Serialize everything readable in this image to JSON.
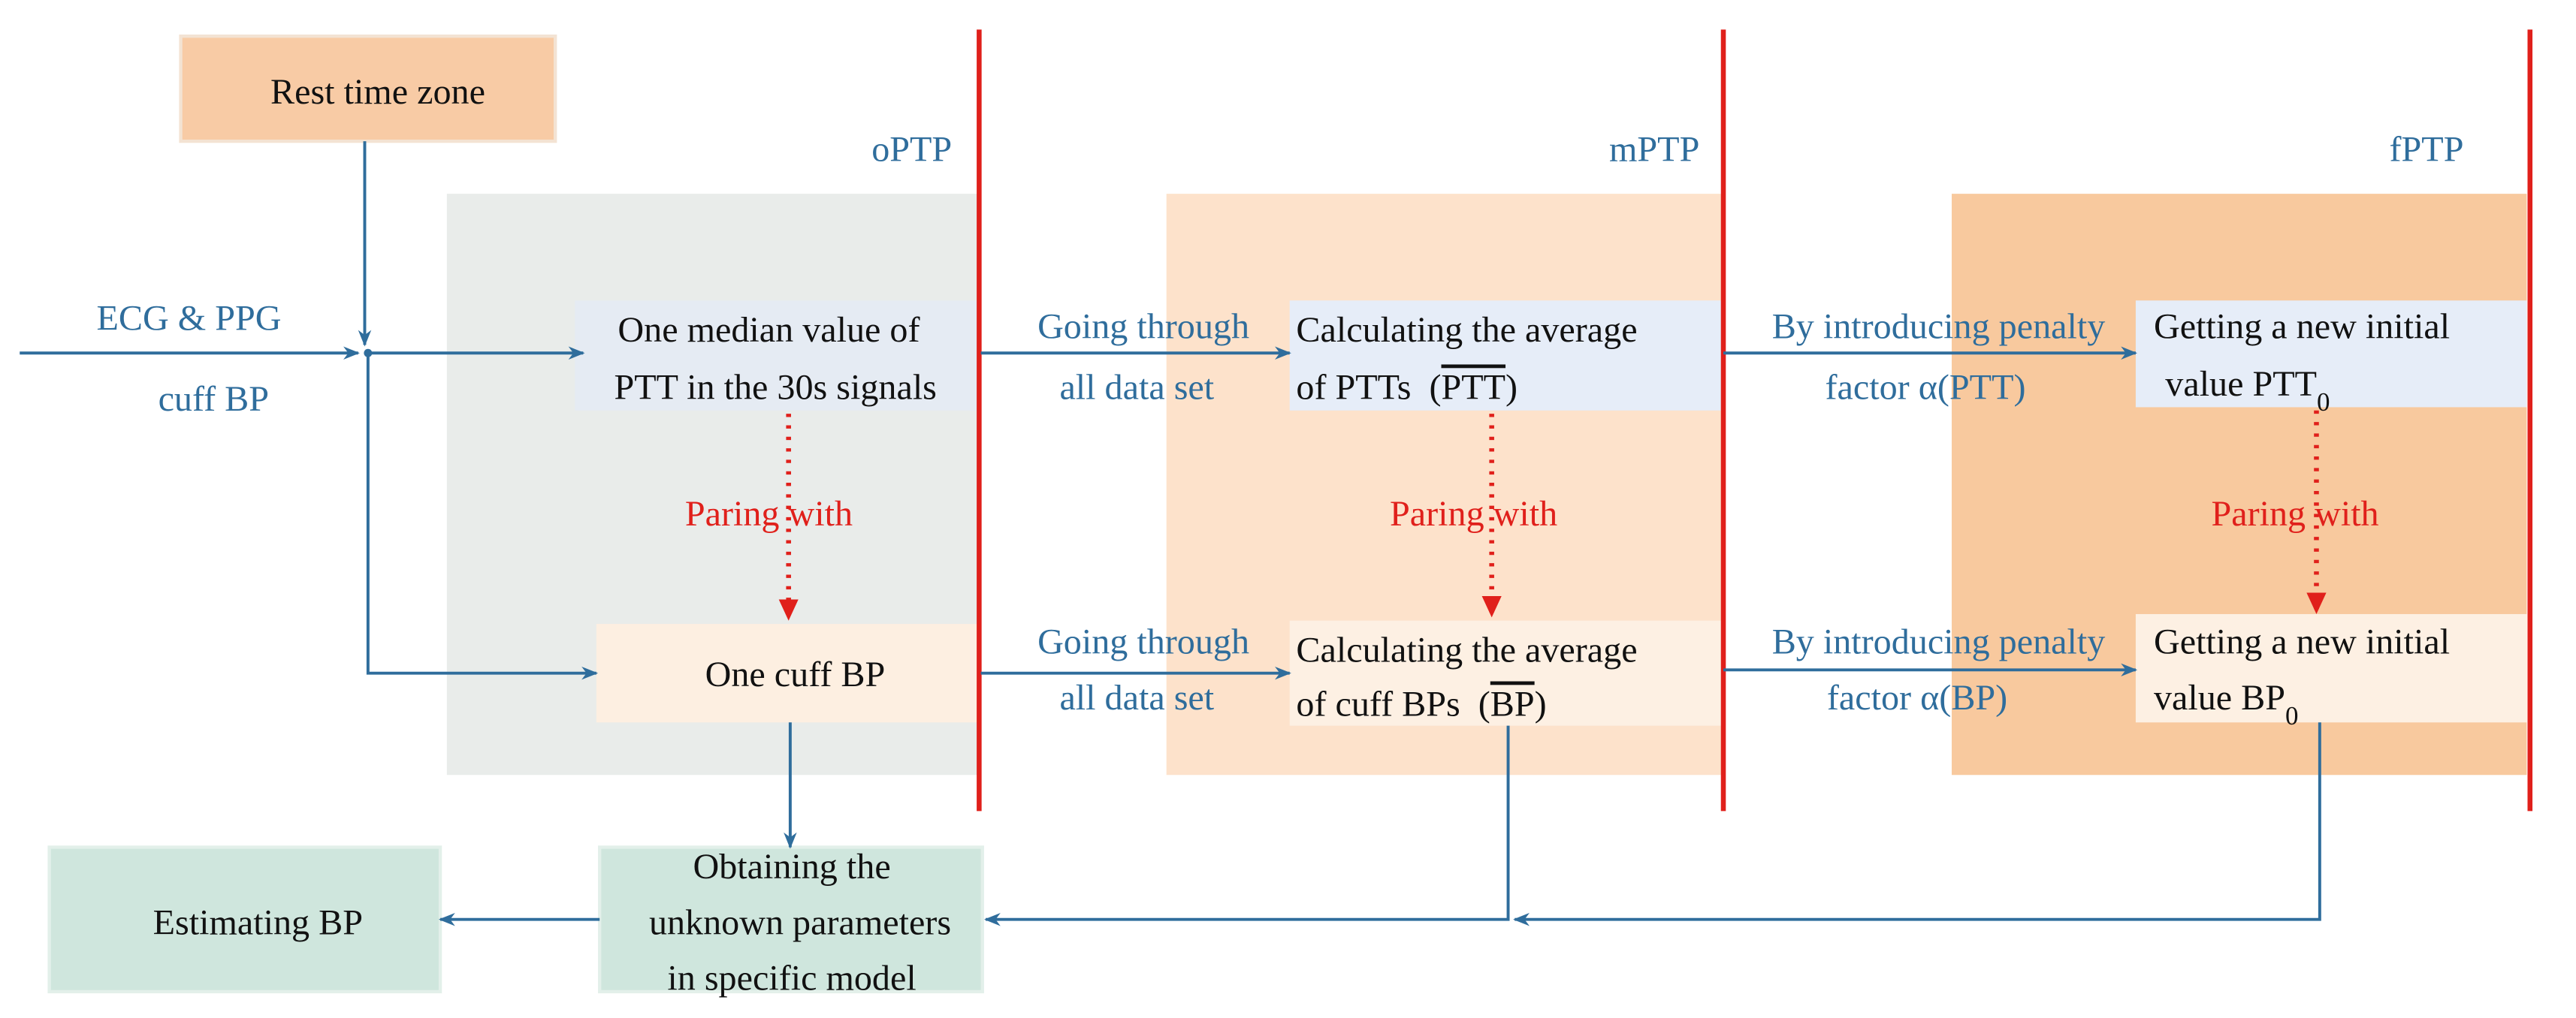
{
  "rest_zone": "Rest time zone",
  "phases": [
    "oPTP",
    "mPTP",
    "fPTP"
  ],
  "inputs": {
    "signals": "ECG & PPG",
    "cuff": "cuff BP"
  },
  "median_ptt": [
    "One median value of",
    "PTT in the 30s signals"
  ],
  "one_cuff_bp": "One cuff BP",
  "going_through": [
    [
      "Going through",
      "all data set"
    ],
    [
      "Going through",
      "all data set"
    ]
  ],
  "avg_ptt": {
    "line1": "Calculating the average",
    "line2": "of PTTs  (",
    "bar": "PTT",
    "close": ")"
  },
  "avg_bp": {
    "line1": "Calculating the average",
    "line2": "of cuff BPs  (",
    "bar": "BP",
    "close": ")"
  },
  "penalty_ptt": {
    "line1": "By introducing penalty",
    "line2": "factor α(PTT)"
  },
  "penalty_bp": {
    "line1": "By introducing penalty",
    "line2": "factor α(BP)"
  },
  "init_ptt": {
    "line1": "Getting a new initial",
    "line2": "value PTT",
    "sub": "0"
  },
  "init_bp": {
    "line1": "Getting a new initial",
    "line2": "value BP",
    "sub": "0"
  },
  "paring": [
    "Paring with",
    "Paring with",
    "Paring with"
  ],
  "obtaining": [
    "Obtaining the",
    "unknown parameters",
    "in specific model"
  ],
  "estimating": "Estimating BP"
}
